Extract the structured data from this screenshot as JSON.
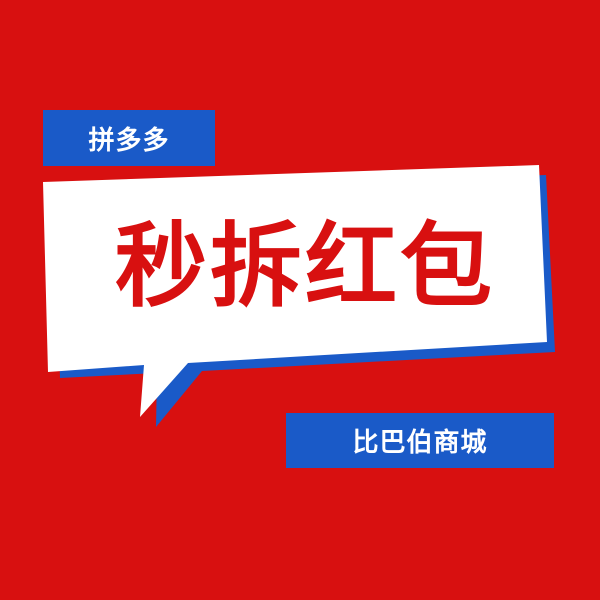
{
  "colors": {
    "background": "#d81010",
    "blue": "#1a5ac8",
    "white": "#ffffff"
  },
  "top_label": "拼多多",
  "headline": "秒拆红包",
  "bottom_label": "比巴伯商城"
}
